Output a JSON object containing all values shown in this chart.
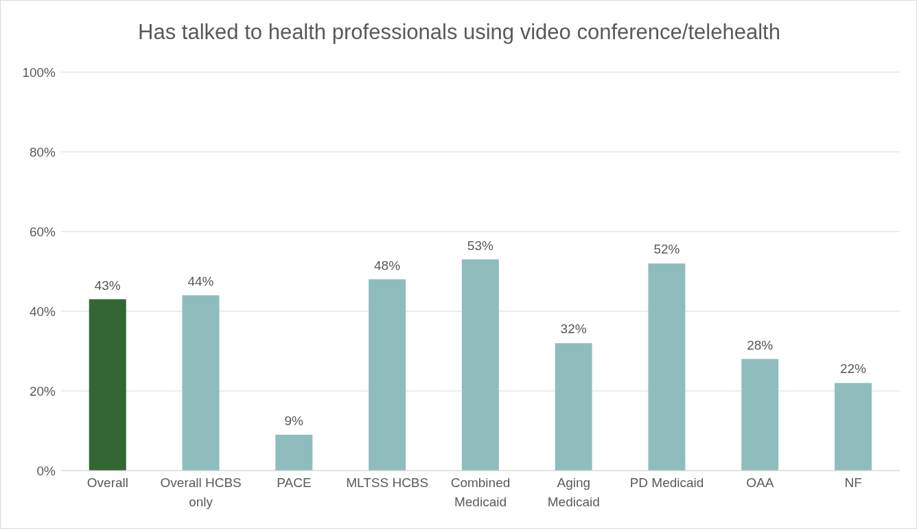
{
  "chart_data": {
    "type": "bar",
    "title": "Has talked to health professionals using video conference/telehealth",
    "categories": [
      "Overall",
      "Overall HCBS only",
      "PACE",
      "MLTSS HCBS",
      "Combined Medicaid",
      "Aging Medicaid",
      "PD Medicaid",
      "OAA",
      "NF"
    ],
    "values": [
      43,
      44,
      9,
      48,
      53,
      32,
      52,
      28,
      22
    ],
    "colors": [
      "#336633",
      "#8fbdbd",
      "#8fbdbd",
      "#8fbdbd",
      "#8fbdbd",
      "#8fbdbd",
      "#8fbdbd",
      "#8fbdbd",
      "#8fbdbd"
    ],
    "value_labels": [
      "43%",
      "44%",
      "9%",
      "48%",
      "53%",
      "32%",
      "52%",
      "28%",
      "22%"
    ],
    "ylim": [
      0,
      100
    ],
    "yticks": [
      {
        "value": 0,
        "label": "0%"
      },
      {
        "value": 20,
        "label": "20%"
      },
      {
        "value": 40,
        "label": "40%"
      },
      {
        "value": 60,
        "label": "60%"
      },
      {
        "value": 80,
        "label": "80%"
      },
      {
        "value": 100,
        "label": "100%"
      }
    ],
    "grid": "y"
  }
}
